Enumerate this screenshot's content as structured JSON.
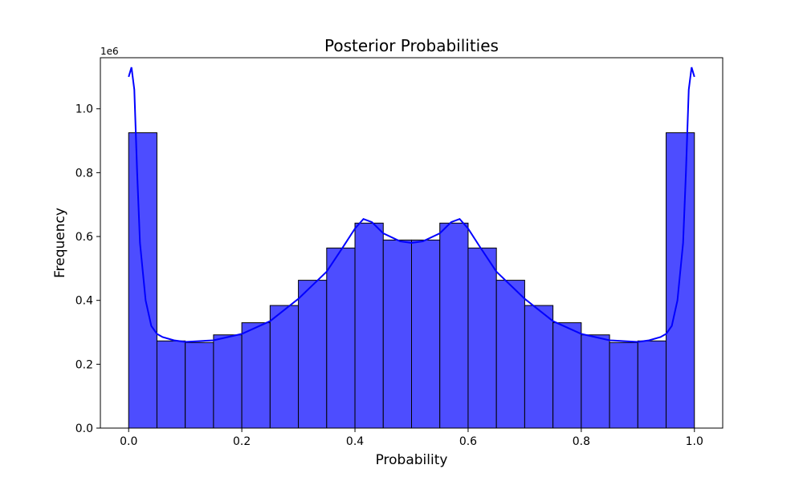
{
  "chart_data": {
    "type": "bar",
    "title": "Posterior Probabilities",
    "xlabel": "Probability",
    "ylabel": "Frequency",
    "y_offset_label": "1e6",
    "xlim": [
      -0.05,
      1.05
    ],
    "ylim": [
      0,
      1.16
    ],
    "xticks": [
      0.0,
      0.2,
      0.4,
      0.6,
      0.8,
      1.0
    ],
    "xtick_labels": [
      "0.0",
      "0.2",
      "0.4",
      "0.6",
      "0.8",
      "1.0"
    ],
    "yticks": [
      0.0,
      0.2,
      0.4,
      0.6,
      0.8,
      1.0
    ],
    "ytick_labels": [
      "0.0",
      "0.2",
      "0.4",
      "0.6",
      "0.8",
      "1.0"
    ],
    "bin_width": 0.05,
    "bin_starts": [
      0.0,
      0.05,
      0.1,
      0.15,
      0.2,
      0.25,
      0.3,
      0.35,
      0.4,
      0.45,
      0.5,
      0.55,
      0.6,
      0.65,
      0.7,
      0.75,
      0.8,
      0.85,
      0.9,
      0.95
    ],
    "values": [
      0.925,
      0.273,
      0.268,
      0.292,
      0.33,
      0.384,
      0.463,
      0.564,
      0.642,
      0.589,
      0.589,
      0.642,
      0.564,
      0.463,
      0.384,
      0.33,
      0.292,
      0.268,
      0.273,
      0.925
    ],
    "kde": {
      "x": [
        0.0,
        0.005,
        0.01,
        0.015,
        0.02,
        0.03,
        0.04,
        0.05,
        0.06,
        0.08,
        0.1,
        0.15,
        0.2,
        0.25,
        0.3,
        0.35,
        0.38,
        0.4,
        0.415,
        0.43,
        0.45,
        0.48,
        0.5,
        0.52,
        0.55,
        0.57,
        0.585,
        0.6,
        0.62,
        0.65,
        0.7,
        0.75,
        0.8,
        0.85,
        0.9,
        0.92,
        0.94,
        0.95,
        0.96,
        0.97,
        0.98,
        0.985,
        0.99,
        0.995,
        1.0
      ],
      "y": [
        1.1,
        1.13,
        1.06,
        0.8,
        0.58,
        0.4,
        0.32,
        0.295,
        0.285,
        0.275,
        0.27,
        0.275,
        0.295,
        0.335,
        0.405,
        0.49,
        0.57,
        0.625,
        0.655,
        0.645,
        0.61,
        0.585,
        0.58,
        0.585,
        0.61,
        0.645,
        0.655,
        0.625,
        0.57,
        0.49,
        0.405,
        0.335,
        0.295,
        0.275,
        0.27,
        0.275,
        0.285,
        0.295,
        0.32,
        0.4,
        0.58,
        0.8,
        1.06,
        1.13,
        1.1
      ]
    },
    "colors": {
      "bar_fill": "#4d4dff",
      "bar_edge": "#000000",
      "kde_line": "#0000ff"
    },
    "grid": false,
    "legend": "none"
  }
}
